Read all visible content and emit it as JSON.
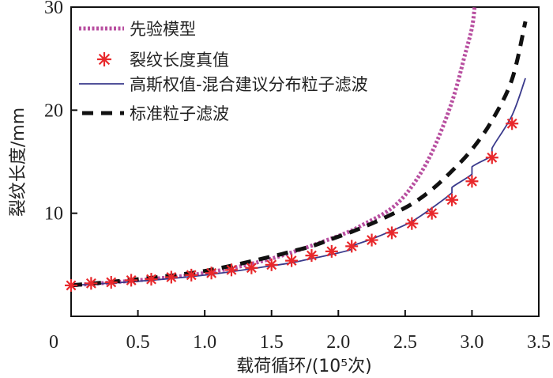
{
  "chart_data": {
    "type": "line",
    "xlabel": "载荷循环/(10⁵次)",
    "ylabel": "裂纹长度/mm",
    "xlim": [
      0,
      3.5
    ],
    "ylim": [
      0,
      30
    ],
    "xticks": [
      "0",
      "0.5",
      "1.0",
      "1.5",
      "2.0",
      "2.5",
      "3.0",
      "3.5"
    ],
    "xtick_values": [
      0,
      0.5,
      1.0,
      1.5,
      2.0,
      2.5,
      3.0,
      3.5
    ],
    "yticks": [
      "10",
      "20",
      "30"
    ],
    "ytick_values": [
      10,
      20,
      30
    ],
    "grid": false,
    "legend_position": "top-left",
    "series": [
      {
        "name": "先验模型",
        "style": "dotted",
        "color": "#b84fa0",
        "x": [
          0,
          0.5,
          1.0,
          1.5,
          2.0,
          2.2,
          2.4,
          2.55,
          2.7,
          2.85,
          2.95,
          3.0,
          3.02
        ],
        "y": [
          3.0,
          3.5,
          4.2,
          5.6,
          7.8,
          9.0,
          10.5,
          12.6,
          15.9,
          20.8,
          25.5,
          28.0,
          30.0
        ]
      },
      {
        "name": "裂纹长度真值",
        "style": "markers",
        "color": "#e8282b",
        "x": [
          0,
          0.15,
          0.3,
          0.45,
          0.6,
          0.75,
          0.9,
          1.05,
          1.2,
          1.35,
          1.5,
          1.65,
          1.8,
          1.95,
          2.1,
          2.25,
          2.4,
          2.55,
          2.7,
          2.85,
          3.0,
          3.15,
          3.3
        ],
        "y": [
          3.0,
          3.2,
          3.3,
          3.5,
          3.6,
          3.8,
          4.0,
          4.2,
          4.5,
          4.7,
          5.0,
          5.4,
          5.9,
          6.3,
          6.8,
          7.4,
          8.1,
          9.0,
          10.0,
          11.3,
          13.1,
          15.4,
          18.7
        ]
      },
      {
        "name": "高斯权值-混合建议分布粒子滤波",
        "style": "solid",
        "color": "#3a3a8c",
        "x": [
          0,
          0.5,
          1.0,
          1.5,
          1.65,
          1.8,
          1.95,
          2.1,
          2.1,
          2.25,
          2.4,
          2.55,
          2.7,
          2.85,
          2.85,
          3.0,
          3.0,
          3.15,
          3.15,
          3.3,
          3.4
        ],
        "y": [
          3.0,
          3.4,
          4.0,
          4.9,
          5.2,
          5.6,
          6.0,
          6.5,
          6.8,
          7.5,
          8.3,
          9.2,
          10.5,
          12.0,
          12.5,
          13.8,
          14.5,
          15.6,
          16.3,
          19.5,
          23.1
        ]
      },
      {
        "name": "标准粒子滤波",
        "style": "dashed",
        "color": "#111111",
        "x": [
          0,
          0.5,
          1.0,
          1.5,
          1.65,
          1.8,
          1.95,
          2.1,
          2.25,
          2.4,
          2.55,
          2.7,
          2.85,
          3.0,
          3.15,
          3.3,
          3.4
        ],
        "y": [
          3.0,
          3.6,
          4.4,
          5.8,
          6.3,
          6.8,
          7.5,
          8.2,
          9.0,
          9.9,
          10.9,
          12.3,
          14.1,
          16.2,
          19.0,
          23.0,
          28.6
        ]
      }
    ]
  }
}
